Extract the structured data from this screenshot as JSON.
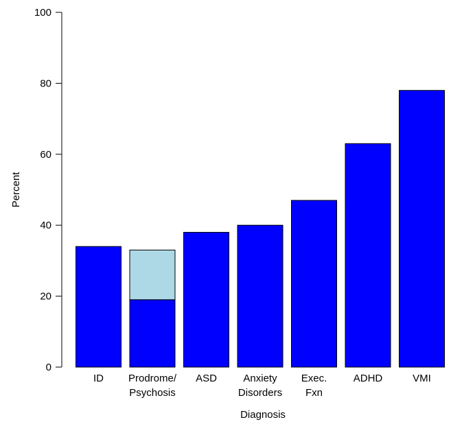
{
  "chart_data": {
    "type": "bar",
    "stacked": true,
    "xlabel": "Diagnosis",
    "ylabel": "Percent",
    "ylim": [
      0,
      100
    ],
    "yticks": [
      "0",
      "20",
      "40",
      "60",
      "80",
      "100"
    ],
    "categories": [
      [
        "ID"
      ],
      [
        "Prodrome/",
        "Psychosis"
      ],
      [
        "ASD"
      ],
      [
        "Anxiety",
        "Disorders"
      ],
      [
        "Exec.",
        "Fxn"
      ],
      [
        "ADHD"
      ],
      [
        "VMI"
      ]
    ],
    "series": [
      {
        "values": [
          34,
          19,
          38,
          40,
          47,
          63,
          78
        ],
        "color": "#0000ff"
      },
      {
        "values": [
          0,
          14,
          0,
          0,
          0,
          0,
          0
        ],
        "color": "#add8e6"
      }
    ],
    "grid": false,
    "legend": "none"
  }
}
